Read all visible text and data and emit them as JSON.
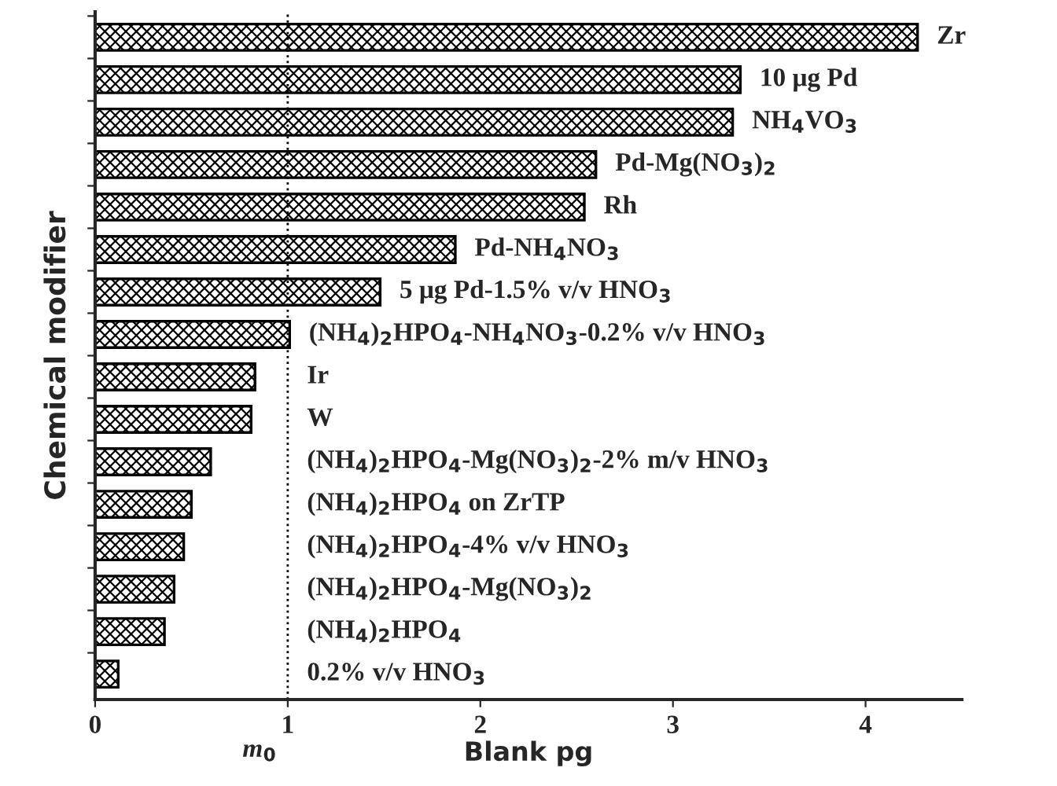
{
  "chart_data": {
    "type": "bar",
    "orientation": "horizontal",
    "xlabel": "Blank pg",
    "ylabel": "Chemical modifier",
    "categories": [
      "Zr",
      "10 μg Pd",
      "NH$_{4}$VO$_{3}$",
      "Pd-Mg(NO$_{3}$)$_{2}$",
      "Rh",
      "Pd-NH$_{4}$NO$_{3}$",
      "5 μg Pd-1.5% v/v HNO$_{3}$",
      "(NH$_{4}$)$_{2}$HPO$_{4}$-NH$_{4}$NO$_{3}$-0.2% v/v HNO$_{3}$",
      "Ir",
      "W",
      "(NH$_{4}$)$_{2}$HPO$_{4}$-Mg(NO$_{3}$)$_{2}$-2% m/v HNO$_{3}$",
      "(NH$_{4}$)$_{2}$HPO$_{4}$ on ZrTP",
      "(NH$_{4}$)$_{2}$HPO$_{4}$-4% v/v HNO$_{3}$",
      "(NH$_{4}$)$_{2}$HPO$_{4}$-Mg(NO$_{3}$)$_{2}$",
      "(NH$_{4}$)$_{2}$HPO$_{4}$",
      "0.2% v/v HNO$_{3}$"
    ],
    "values": [
      4.27,
      3.35,
      3.31,
      2.6,
      2.54,
      1.87,
      1.48,
      1.01,
      0.83,
      0.81,
      0.6,
      0.5,
      0.46,
      0.41,
      0.36,
      0.12
    ],
    "color": "#000000",
    "xlim": [
      0,
      4.5
    ],
    "xticks": [
      0,
      1,
      2,
      3,
      4
    ],
    "ref_lines": [
      {
        "axis": "x",
        "value": 1,
        "label": "m$_{0}$",
        "color": "#000000",
        "line_style": "dotted"
      }
    ],
    "grid": false,
    "legend": false
  }
}
